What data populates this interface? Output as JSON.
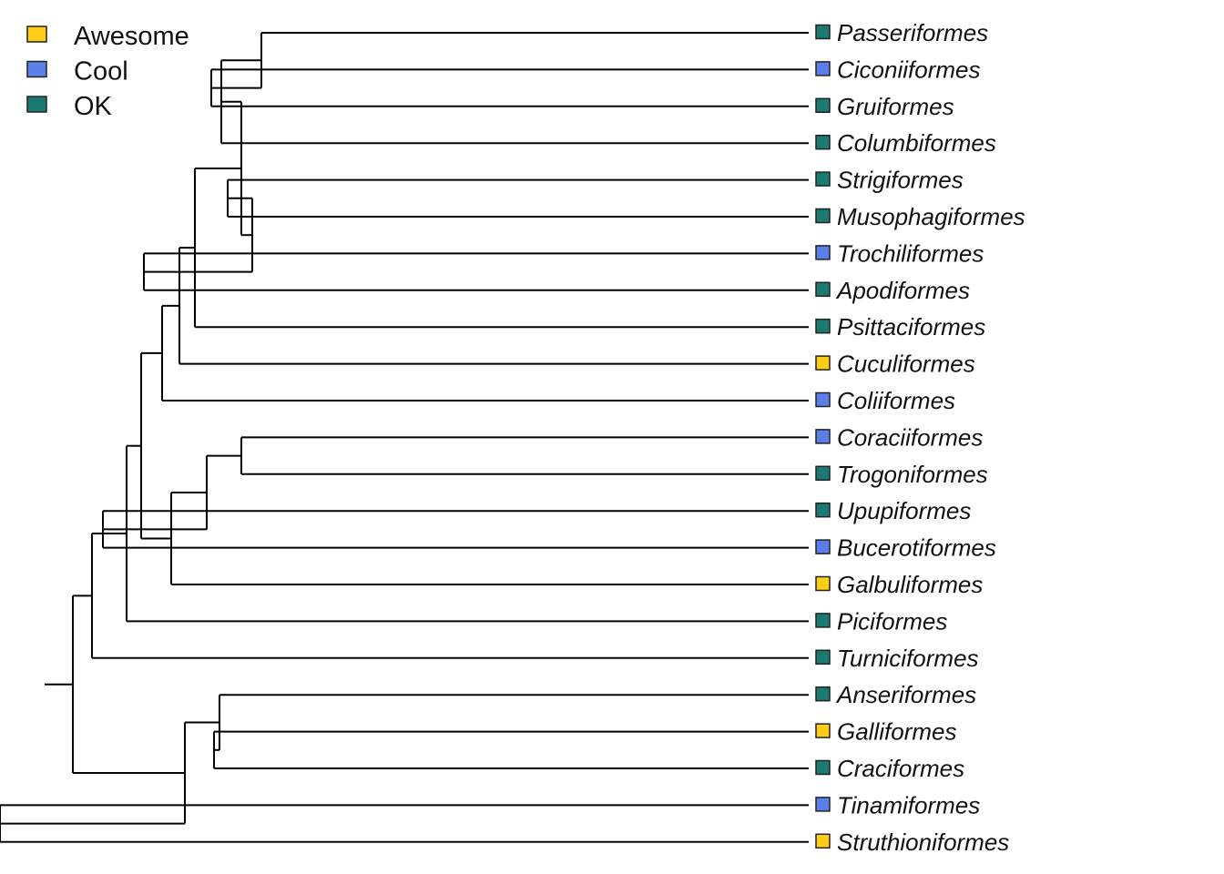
{
  "legend": [
    {
      "label": "Awesome",
      "color": "#FFCC1A"
    },
    {
      "label": "Cool",
      "color": "#5B7FE6"
    },
    {
      "label": "OK",
      "color": "#1A7A72"
    }
  ],
  "tips": [
    {
      "name": "Passeriformes",
      "category": "OK"
    },
    {
      "name": "Ciconiiformes",
      "category": "Cool"
    },
    {
      "name": "Gruiformes",
      "category": "OK"
    },
    {
      "name": "Columbiformes",
      "category": "OK"
    },
    {
      "name": "Strigiformes",
      "category": "OK"
    },
    {
      "name": "Musophagiformes",
      "category": "OK"
    },
    {
      "name": "Trochiliformes",
      "category": "Cool"
    },
    {
      "name": "Apodiformes",
      "category": "OK"
    },
    {
      "name": "Psittaciformes",
      "category": "OK"
    },
    {
      "name": "Cuculiformes",
      "category": "Awesome"
    },
    {
      "name": "Coliiformes",
      "category": "Cool"
    },
    {
      "name": "Coraciiformes",
      "category": "Cool"
    },
    {
      "name": "Trogoniformes",
      "category": "OK"
    },
    {
      "name": "Upupiformes",
      "category": "OK"
    },
    {
      "name": "Bucerotiformes",
      "category": "Cool"
    },
    {
      "name": "Galbuliformes",
      "category": "Awesome"
    },
    {
      "name": "Piciformes",
      "category": "OK"
    },
    {
      "name": "Turniciformes",
      "category": "OK"
    },
    {
      "name": "Anseriformes",
      "category": "OK"
    },
    {
      "name": "Galliformes",
      "category": "Awesome"
    },
    {
      "name": "Craciformes",
      "category": "OK"
    },
    {
      "name": "Tinamiformes",
      "category": "Cool"
    },
    {
      "name": "Struthioniformes",
      "category": "Awesome"
    }
  ],
  "topology": "(((((((((((Passeriformes,(Ciconiiformes,Gruiformes)),Columbiformes),((Strigiformes,Musophagiformes),(Trochiliformes,Apodiformes))),Psittaciformes),Cuculiformes),Coliiformes),(((Coraciiformes,Trogoniformes),(Upupiformes,Bucerotiformes)),Galbuliformes)),Piciformes),Turniciformes),((Anseriformes,(Galliformes,Craciformes)),(Tinamiformes,Struthioniformes)))"
}
